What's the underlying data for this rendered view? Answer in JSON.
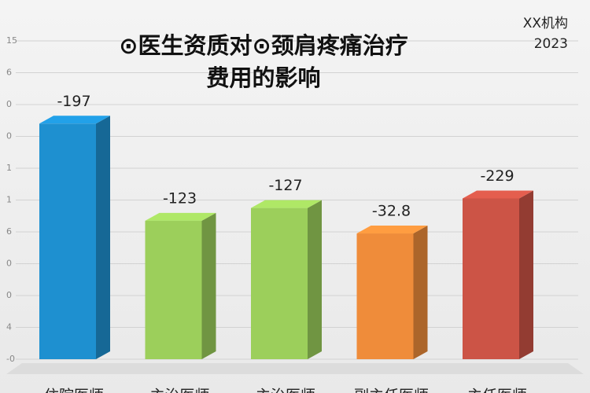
{
  "chart_data": {
    "type": "bar",
    "title_lines": [
      "⊙医生资质对⊙颈肩疼痛治疗",
      "费用的影响"
    ],
    "corner_lines": [
      "XX机构",
      "2023"
    ],
    "categories": [
      "住院医师",
      "主治医师",
      "主治医师",
      "副主任医师",
      "主任医师"
    ],
    "values": [
      7.4,
      4.35,
      4.75,
      3.95,
      5.05
    ],
    "annotations": [
      "-197",
      "-123",
      "-127",
      "-32.8",
      "-229"
    ],
    "colors": [
      "#1e90d0",
      "#9ccf5b",
      "#9ccf5b",
      "#ef8c3a",
      "#cc5446"
    ],
    "ylim": [
      0,
      10
    ],
    "yticks": [
      {
        "value": 10,
        "label": "15"
      },
      {
        "value": 9,
        "label": "6"
      },
      {
        "value": 8,
        "label": "0"
      },
      {
        "value": 7,
        "label": "0"
      },
      {
        "value": 6,
        "label": "1"
      },
      {
        "value": 5,
        "label": "1"
      },
      {
        "value": 4,
        "label": "6"
      },
      {
        "value": 3,
        "label": "0"
      },
      {
        "value": 2,
        "label": "0"
      },
      {
        "value": 1,
        "label": "4"
      },
      {
        "value": 0,
        "label": "-0"
      }
    ],
    "grid": true
  }
}
